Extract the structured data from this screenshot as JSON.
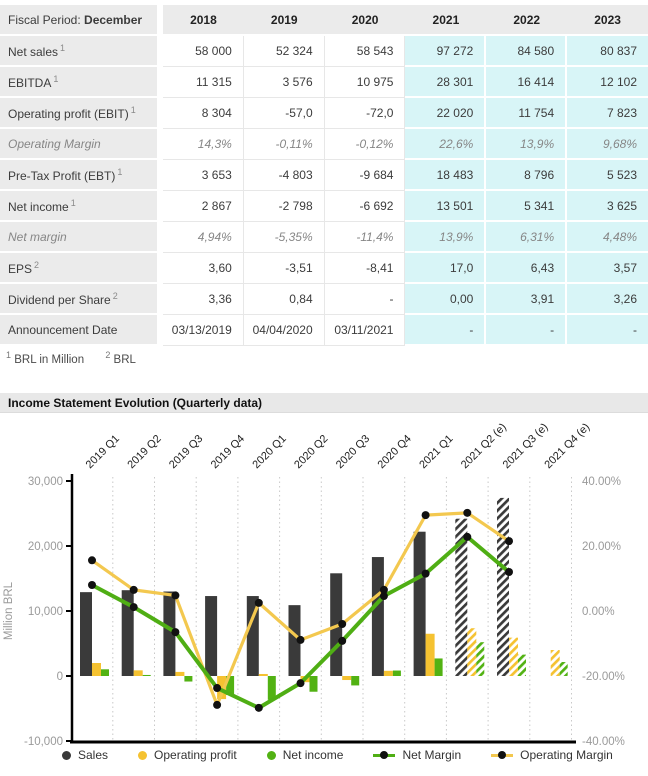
{
  "table": {
    "fiscal_period_label": "Fiscal Period:",
    "fiscal_period_value": "December",
    "years": [
      "2018",
      "2019",
      "2020",
      "2021",
      "2022",
      "2023"
    ],
    "estimate_years_start_index": 3,
    "colors": {
      "header_bg": "#ebebeb",
      "estimate_bg": "#d8f5f7",
      "text": "#3c3c3c",
      "muted_text": "#868686"
    },
    "rows": [
      {
        "label": "Net sales",
        "sup": "1",
        "style": "normal",
        "values": [
          "58 000",
          "52 324",
          "58 543",
          "97 272",
          "84 580",
          "80 837"
        ]
      },
      {
        "label": "EBITDA",
        "sup": "1",
        "style": "normal",
        "values": [
          "11 315",
          "3 576",
          "10 975",
          "28 301",
          "16 414",
          "12 102"
        ]
      },
      {
        "label": "Operating profit (EBIT)",
        "sup": "1",
        "style": "normal",
        "values": [
          "8 304",
          "-57,0",
          "-72,0",
          "22 020",
          "11 754",
          "7 823"
        ]
      },
      {
        "label": "Operating Margin",
        "sup": "",
        "style": "muted",
        "values": [
          "14,3%",
          "-0,11%",
          "-0,12%",
          "22,6%",
          "13,9%",
          "9,68%"
        ]
      },
      {
        "label": "Pre-Tax Profit (EBT)",
        "sup": "1",
        "style": "normal",
        "values": [
          "3 653",
          "-4 803",
          "-9 684",
          "18 483",
          "8 796",
          "5 523"
        ]
      },
      {
        "label": "Net income",
        "sup": "1",
        "style": "normal",
        "values": [
          "2 867",
          "-2 798",
          "-6 692",
          "13 501",
          "5 341",
          "3 625"
        ]
      },
      {
        "label": "Net margin",
        "sup": "",
        "style": "muted",
        "values": [
          "4,94%",
          "-5,35%",
          "-11,4%",
          "13,9%",
          "6,31%",
          "4,48%"
        ]
      },
      {
        "label": "EPS",
        "sup": "2",
        "style": "normal",
        "values": [
          "3,60",
          "-3,51",
          "-8,41",
          "17,0",
          "6,43",
          "3,57"
        ]
      },
      {
        "label": "Dividend per Share",
        "sup": "2",
        "style": "normal",
        "values": [
          "3,36",
          "0,84",
          "-",
          "0,00",
          "3,91",
          "3,26"
        ]
      },
      {
        "label": "Announcement Date",
        "sup": "",
        "style": "normal",
        "values": [
          "03/13/2019",
          "04/04/2020",
          "03/11/2021",
          "-",
          "-",
          "-"
        ]
      }
    ]
  },
  "footnotes": [
    {
      "sup": "1",
      "text": "BRL in Million"
    },
    {
      "sup": "2",
      "text": "BRL"
    }
  ],
  "chart_data": {
    "type": "combo",
    "title": "Income Statement Evolution (Quarterly data)",
    "ylabel_left": "Million BRL",
    "categories": [
      "2019 Q1",
      "2019 Q2",
      "2019 Q3",
      "2019 Q4",
      "2020 Q1",
      "2020 Q2",
      "2020 Q3",
      "2020 Q4",
      "2021 Q1",
      "2021 Q2 (e)",
      "2021 Q3 (e)",
      "2021 Q4 (e)"
    ],
    "estimate_start_index": 9,
    "left_axis": {
      "min": -10000,
      "max": 30000,
      "ticks": [
        [
          30000,
          "30,000"
        ],
        [
          20000,
          "20,000"
        ],
        [
          10000,
          "10,000"
        ],
        [
          0,
          "0"
        ],
        [
          -10000,
          "-10,000"
        ]
      ]
    },
    "right_axis": {
      "min": -40,
      "max": 40,
      "ticks": [
        [
          40,
          "40.00%"
        ],
        [
          20,
          "20.00%"
        ],
        [
          0,
          "0.00%"
        ],
        [
          -20,
          "-20.00%"
        ],
        [
          -40,
          "-40.00%"
        ]
      ]
    },
    "grid": "vertical-dotted",
    "series": [
      {
        "name": "Sales",
        "kind": "bar",
        "axis": "left",
        "color": "#3a3a3a",
        "values": [
          12900,
          13200,
          13000,
          12300,
          12300,
          10900,
          15800,
          18300,
          22200,
          24200,
          27400,
          null
        ]
      },
      {
        "name": "Operating profit",
        "kind": "bar",
        "axis": "left",
        "color": "#f5c231",
        "values": [
          2000,
          870,
          630,
          -3550,
          310,
          -950,
          -620,
          800,
          6500,
          7350,
          5900,
          4000
        ]
      },
      {
        "name": "Net income",
        "kind": "bar",
        "axis": "left",
        "color": "#52b213",
        "values": [
          1030,
          160,
          -850,
          -2920,
          -3660,
          -2420,
          -1450,
          840,
          2700,
          5200,
          3290,
          2150
        ]
      },
      {
        "name": "Net Margin",
        "kind": "line",
        "axis": "right",
        "color": "#4fae14",
        "marker_color": "#111111",
        "values": [
          8.0,
          1.2,
          -6.5,
          -23.7,
          -29.8,
          -22.2,
          -9.2,
          4.6,
          11.5,
          22.8,
          12.0,
          null
        ]
      },
      {
        "name": "Operating Margin",
        "kind": "line",
        "axis": "right",
        "color": "#f3c84f",
        "marker_color": "#111111",
        "values": [
          15.6,
          6.5,
          4.8,
          -28.9,
          2.5,
          -8.9,
          -4.0,
          6.5,
          29.5,
          30.2,
          21.5,
          null
        ]
      }
    ],
    "legend": [
      {
        "label": "Sales",
        "marker": "dot",
        "color": "#3a3a3a",
        "slug": "sales"
      },
      {
        "label": "Operating profit",
        "marker": "dot",
        "color": "#f5c231",
        "slug": "operating-profit"
      },
      {
        "label": "Net income",
        "marker": "dot",
        "color": "#52b213",
        "slug": "net-income"
      },
      {
        "label": "Net Margin",
        "marker": "line-dot",
        "color": "#4fae14",
        "slug": "net-margin"
      },
      {
        "label": "Operating Margin",
        "marker": "line-dot",
        "color": "#f3c84f",
        "slug": "operating-margin"
      }
    ]
  }
}
